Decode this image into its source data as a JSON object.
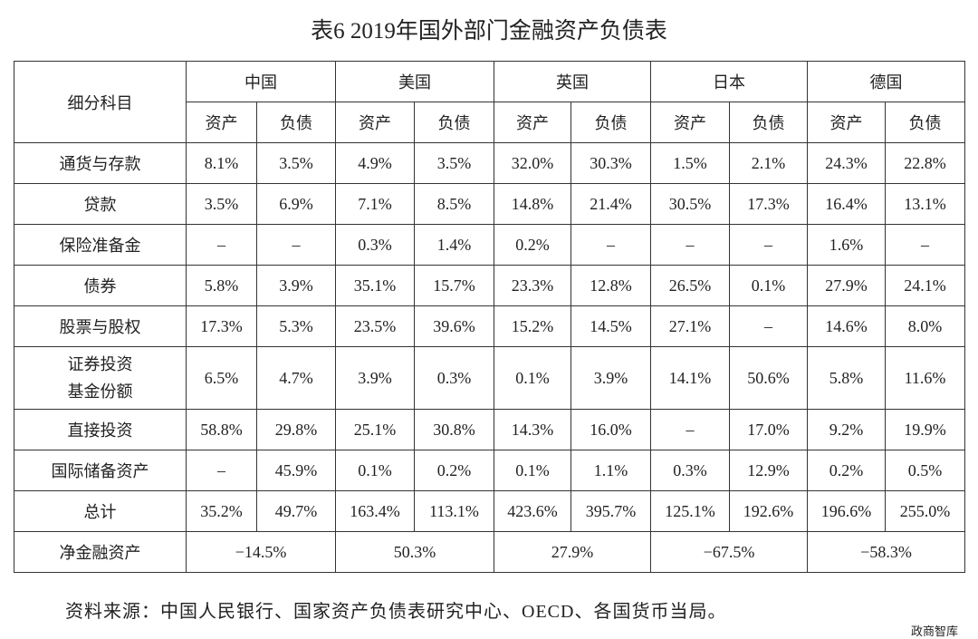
{
  "title": "表6  2019年国外部门金融资产负债表",
  "table": {
    "corner": "细分科目",
    "countries": [
      {
        "name": "中国",
        "sub": [
          "资产",
          "负债"
        ]
      },
      {
        "name": "美国",
        "sub": [
          "资产",
          "负债"
        ]
      },
      {
        "name": "英国",
        "sub": [
          "资产",
          "负债"
        ]
      },
      {
        "name": "日本",
        "sub": [
          "资产",
          "负债"
        ]
      },
      {
        "name": "德国",
        "sub": [
          "资产",
          "负债"
        ]
      }
    ],
    "rows": [
      {
        "label": [
          "通货与存款"
        ],
        "values": [
          "8.1%",
          "3.5%",
          "4.9%",
          "3.5%",
          "32.0%",
          "30.3%",
          "1.5%",
          "2.1%",
          "24.3%",
          "22.8%"
        ]
      },
      {
        "label": [
          "贷款"
        ],
        "values": [
          "3.5%",
          "6.9%",
          "7.1%",
          "8.5%",
          "14.8%",
          "21.4%",
          "30.5%",
          "17.3%",
          "16.4%",
          "13.1%"
        ]
      },
      {
        "label": [
          "保险准备金"
        ],
        "values": [
          "–",
          "–",
          "0.3%",
          "1.4%",
          "0.2%",
          "–",
          "–",
          "–",
          "1.6%",
          "–"
        ]
      },
      {
        "label": [
          "债券"
        ],
        "values": [
          "5.8%",
          "3.9%",
          "35.1%",
          "15.7%",
          "23.3%",
          "12.8%",
          "26.5%",
          "0.1%",
          "27.9%",
          "24.1%"
        ]
      },
      {
        "label": [
          "股票与股权"
        ],
        "values": [
          "17.3%",
          "5.3%",
          "23.5%",
          "39.6%",
          "15.2%",
          "14.5%",
          "27.1%",
          "–",
          "14.6%",
          "8.0%"
        ]
      },
      {
        "label": [
          "证券投资",
          "基金份额"
        ],
        "values": [
          "6.5%",
          "4.7%",
          "3.9%",
          "0.3%",
          "0.1%",
          "3.9%",
          "14.1%",
          "50.6%",
          "5.8%",
          "11.6%"
        ]
      },
      {
        "label": [
          "直接投资"
        ],
        "values": [
          "58.8%",
          "29.8%",
          "25.1%",
          "30.8%",
          "14.3%",
          "16.0%",
          "–",
          "17.0%",
          "9.2%",
          "19.9%"
        ]
      },
      {
        "label": [
          "国际储备资产"
        ],
        "values": [
          "–",
          "45.9%",
          "0.1%",
          "0.2%",
          "0.1%",
          "1.1%",
          "0.3%",
          "12.9%",
          "0.2%",
          "0.5%"
        ]
      },
      {
        "label": [
          "总计"
        ],
        "values": [
          "35.2%",
          "49.7%",
          "163.4%",
          "113.1%",
          "423.6%",
          "395.7%",
          "125.1%",
          "192.6%",
          "196.6%",
          "255.0%"
        ]
      }
    ],
    "net": {
      "label": "净金融资产",
      "values": [
        "−14.5%",
        "50.3%",
        "27.9%",
        "−67.5%",
        "−58.3%"
      ]
    }
  },
  "source": "资料来源：中国人民银行、国家资产负债表研究中心、OECD、各国货币当局。",
  "watermark": "政商智库"
}
